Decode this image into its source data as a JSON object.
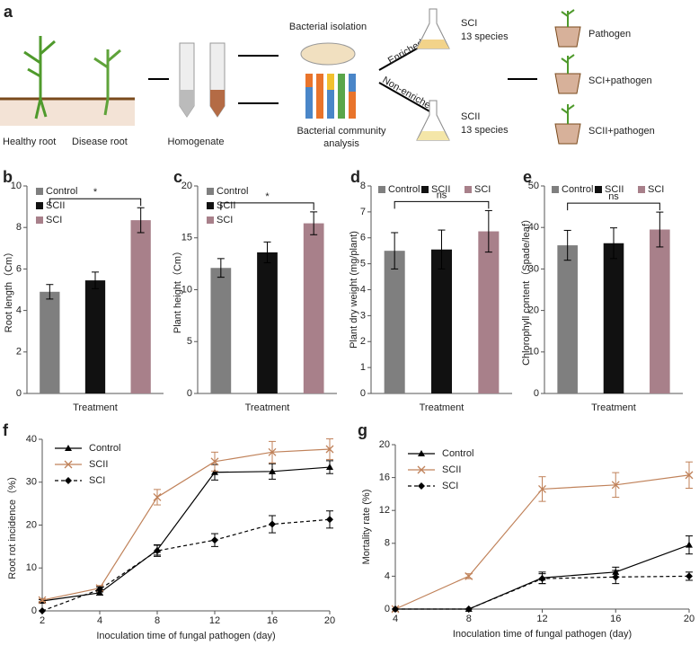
{
  "panel_a": {
    "label": "a",
    "healthy_root": "Healthy root",
    "disease_root": "Disease root",
    "homogenate": "Homogenate",
    "bacterial_isolation": "Bacterial isolation",
    "community_analysis": [
      "Bacterial community",
      "analysis"
    ],
    "enriched": "Enriched",
    "non_enriched": "Non-enriched",
    "sci": "SCI",
    "sci_species": "13 species",
    "scii": "SCII",
    "scii_species": "13 species",
    "pot_1": "Pathogen",
    "pot_2": "SCI+pathogen",
    "pot_3": "SCII+pathogen"
  },
  "chart_data": [
    {
      "type": "bar",
      "panel": "b",
      "y_label": "Root length（Cm）",
      "x_label": "Treatment",
      "ylim": [
        0,
        10
      ],
      "yticks": [
        0,
        2,
        4,
        6,
        8,
        10
      ],
      "legend": "upper left",
      "annotation": "*",
      "series": [
        {
          "name": "Control",
          "color": "#7f7f7f",
          "values": [
            4.9
          ],
          "errors": [
            0.35
          ]
        },
        {
          "name": "SCII",
          "color": "#111111",
          "values": [
            5.45
          ],
          "errors": [
            0.4
          ]
        },
        {
          "name": "SCI",
          "color": "#a8808a",
          "values": [
            8.35
          ],
          "errors": [
            0.6
          ]
        }
      ]
    },
    {
      "type": "bar",
      "panel": "c",
      "y_label": "Plant height（Cm）",
      "x_label": "Treatment",
      "ylim": [
        0,
        20
      ],
      "yticks": [
        0,
        5,
        10,
        15,
        20
      ],
      "legend": "upper left",
      "annotation": "*",
      "series": [
        {
          "name": "Control",
          "color": "#7f7f7f",
          "values": [
            12.1
          ],
          "errors": [
            0.9
          ]
        },
        {
          "name": "SCII",
          "color": "#111111",
          "values": [
            13.6
          ],
          "errors": [
            1.0
          ]
        },
        {
          "name": "SCI",
          "color": "#a8808a",
          "values": [
            16.4
          ],
          "errors": [
            1.1
          ]
        }
      ]
    },
    {
      "type": "bar",
      "panel": "d",
      "y_label": "Plant dry weight (mg/plant)",
      "x_label": "Treatment",
      "ylim": [
        0,
        8
      ],
      "yticks": [
        0,
        1,
        2,
        3,
        4,
        5,
        6,
        7,
        8
      ],
      "legend": "top",
      "annotation": "ns",
      "series": [
        {
          "name": "Control",
          "color": "#7f7f7f",
          "values": [
            5.5
          ],
          "errors": [
            0.7
          ]
        },
        {
          "name": "SCII",
          "color": "#111111",
          "values": [
            5.55
          ],
          "errors": [
            0.75
          ]
        },
        {
          "name": "SCI",
          "color": "#a8808a",
          "values": [
            6.25
          ],
          "errors": [
            0.8
          ]
        }
      ]
    },
    {
      "type": "bar",
      "panel": "e",
      "y_label": "Chlorophyll content（Spade/leaf）",
      "x_label": "Treatment",
      "ylim": [
        0,
        50
      ],
      "yticks": [
        0,
        10,
        20,
        30,
        40,
        50
      ],
      "legend": "top",
      "annotation": "ns",
      "series": [
        {
          "name": "Control",
          "color": "#7f7f7f",
          "values": [
            35.7
          ],
          "errors": [
            3.6
          ]
        },
        {
          "name": "SCII",
          "color": "#111111",
          "values": [
            36.2
          ],
          "errors": [
            3.7
          ]
        },
        {
          "name": "SCI",
          "color": "#a8808a",
          "values": [
            39.5
          ],
          "errors": [
            4.2
          ]
        }
      ]
    },
    {
      "type": "line",
      "panel": "f",
      "y_label": "Root rot incidence（%）",
      "x_label": "Inoculation time of fungal pathogen (day)",
      "categories": [
        "2",
        "4",
        "8",
        "12",
        "16",
        "20"
      ],
      "ylim": [
        0,
        40
      ],
      "yticks": [
        0,
        10,
        20,
        30,
        40
      ],
      "legend": "upper left",
      "series": [
        {
          "name": "Control",
          "color": "#000000",
          "marker": "triangle",
          "dashed": false,
          "values": [
            2.3,
            4.2,
            14.2,
            32.3,
            32.5,
            33.5
          ],
          "errors": [
            0.3,
            0.5,
            1.2,
            1.8,
            1.8,
            1.5
          ]
        },
        {
          "name": "SCII",
          "color": "#c0825a",
          "marker": "x",
          "dashed": false,
          "values": [
            2.5,
            5.3,
            26.5,
            34.8,
            37,
            37.7
          ],
          "errors": [
            0.3,
            0.6,
            1.8,
            2.2,
            2.5,
            2.4
          ]
        },
        {
          "name": "SCI",
          "color": "#000000",
          "marker": "diamond",
          "dashed": true,
          "values": [
            0,
            5,
            14,
            16.5,
            20.2,
            21.3
          ],
          "errors": [
            0,
            0.6,
            1.3,
            1.5,
            2,
            2
          ]
        }
      ]
    },
    {
      "type": "line",
      "panel": "g",
      "y_label": "Mortality rate (%)",
      "x_label": "Inoculation time of fungal pathogen (day)",
      "categories": [
        "4",
        "8",
        "12",
        "16",
        "20"
      ],
      "ylim": [
        0,
        20
      ],
      "yticks": [
        0,
        4,
        8,
        12,
        16,
        20
      ],
      "legend": "upper left",
      "series": [
        {
          "name": "Control",
          "color": "#000000",
          "marker": "triangle",
          "dashed": false,
          "values": [
            0,
            0,
            3.8,
            4.5,
            7.8
          ],
          "errors": [
            0,
            0,
            0.7,
            0.6,
            1.1
          ]
        },
        {
          "name": "SCII",
          "color": "#c0825a",
          "marker": "x",
          "dashed": false,
          "values": [
            0,
            4,
            14.6,
            15.1,
            16.3
          ],
          "errors": [
            0,
            0.3,
            1.5,
            1.5,
            1.6
          ]
        },
        {
          "name": "SCI",
          "color": "#000000",
          "marker": "diamond",
          "dashed": true,
          "values": [
            0,
            0,
            3.7,
            3.9,
            4.0
          ],
          "errors": [
            0,
            0,
            0.6,
            0.8,
            0.5
          ]
        }
      ]
    }
  ]
}
